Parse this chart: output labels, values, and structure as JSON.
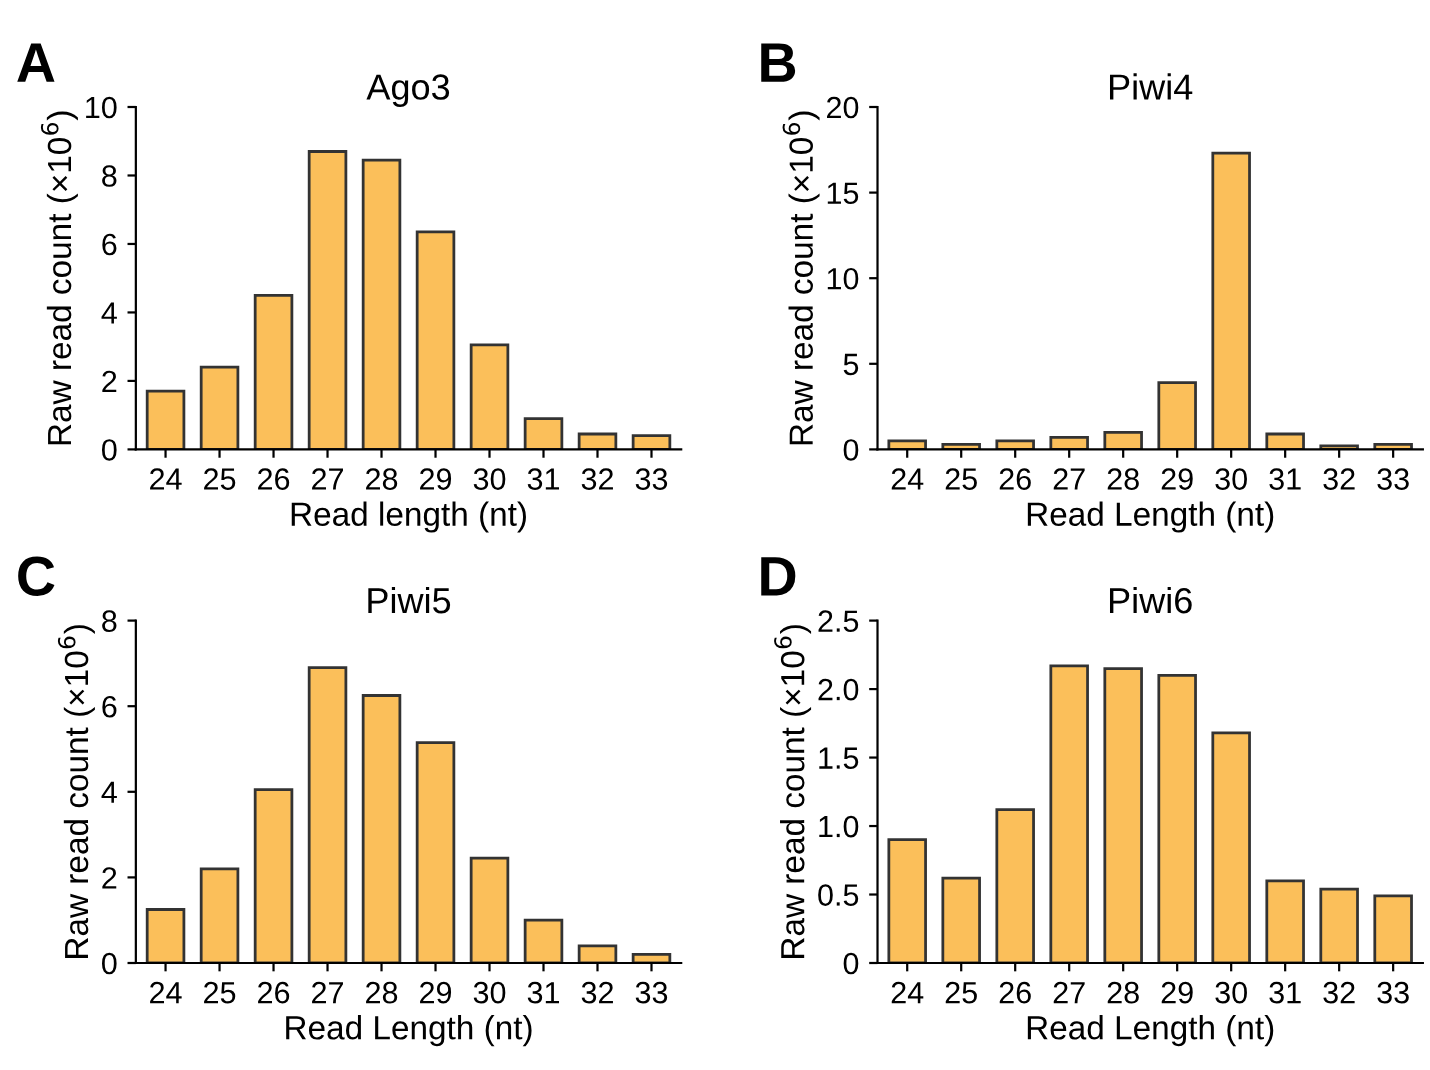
{
  "chart_data": [
    {
      "type": "bar",
      "title": "Ago3",
      "xlabel": "Read length (nt)",
      "ylabel": "Raw read count (×10$^{6}$)",
      "annotations": [
        "A"
      ],
      "categories": [
        "24",
        "25",
        "26",
        "27",
        "28",
        "29",
        "30",
        "31",
        "32",
        "33"
      ],
      "color": "#fbbf5a",
      "values": [
        1.7,
        2.4,
        4.5,
        8.7,
        8.45,
        6.35,
        3.05,
        0.9,
        0.45,
        0.4
      ],
      "ylim": [
        0,
        10
      ],
      "yticks": [
        0,
        2,
        4,
        6,
        8,
        10
      ],
      "grid": false
    },
    {
      "type": "bar",
      "title": "Piwi4",
      "xlabel": "Read Length (nt)",
      "ylabel": "Raw read count (×10$^{6}$)",
      "annotations": [
        "B"
      ],
      "categories": [
        "24",
        "25",
        "26",
        "27",
        "28",
        "29",
        "30",
        "31",
        "32",
        "33"
      ],
      "color": "#fbbf5a",
      "values": [
        0.5,
        0.3,
        0.5,
        0.7,
        1.0,
        3.9,
        17.3,
        0.9,
        0.2,
        0.3
      ],
      "ylim": [
        0,
        20
      ],
      "yticks": [
        0,
        5,
        10,
        15,
        20
      ],
      "grid": false
    },
    {
      "type": "bar",
      "title": "Piwi5",
      "xlabel": "Read Length (nt)",
      "ylabel": "Raw read count (×10$^{6}$)",
      "annotations": [
        "C"
      ],
      "categories": [
        "24",
        "25",
        "26",
        "27",
        "28",
        "29",
        "30",
        "31",
        "32",
        "33"
      ],
      "color": "#fbbf5a",
      "values": [
        1.25,
        2.2,
        4.05,
        6.9,
        6.25,
        5.15,
        2.45,
        1.0,
        0.4,
        0.2
      ],
      "ylim": [
        0,
        8
      ],
      "yticks": [
        0,
        2,
        4,
        6,
        8
      ],
      "grid": false
    },
    {
      "type": "bar",
      "title": "Piwi6",
      "xlabel": "Read Length (nt)",
      "ylabel": "Raw read count (×10$^{6}$)",
      "annotations": [
        "D"
      ],
      "categories": [
        "24",
        "25",
        "26",
        "27",
        "28",
        "29",
        "30",
        "31",
        "32",
        "33"
      ],
      "color": "#fbbf5a",
      "values": [
        0.9,
        0.62,
        1.12,
        2.17,
        2.15,
        2.1,
        1.68,
        0.6,
        0.54,
        0.49
      ],
      "ylim": [
        0,
        2.5
      ],
      "yticks": [
        0,
        {
          "value": 0.5,
          "label": "0.5"
        },
        {
          "value": 1,
          "label": "1.0"
        },
        {
          "value": 1.5,
          "label": "1.5"
        },
        {
          "value": 2,
          "label": "2.0"
        },
        {
          "value": 2.5,
          "label": "2.5"
        }
      ],
      "grid": false
    }
  ]
}
